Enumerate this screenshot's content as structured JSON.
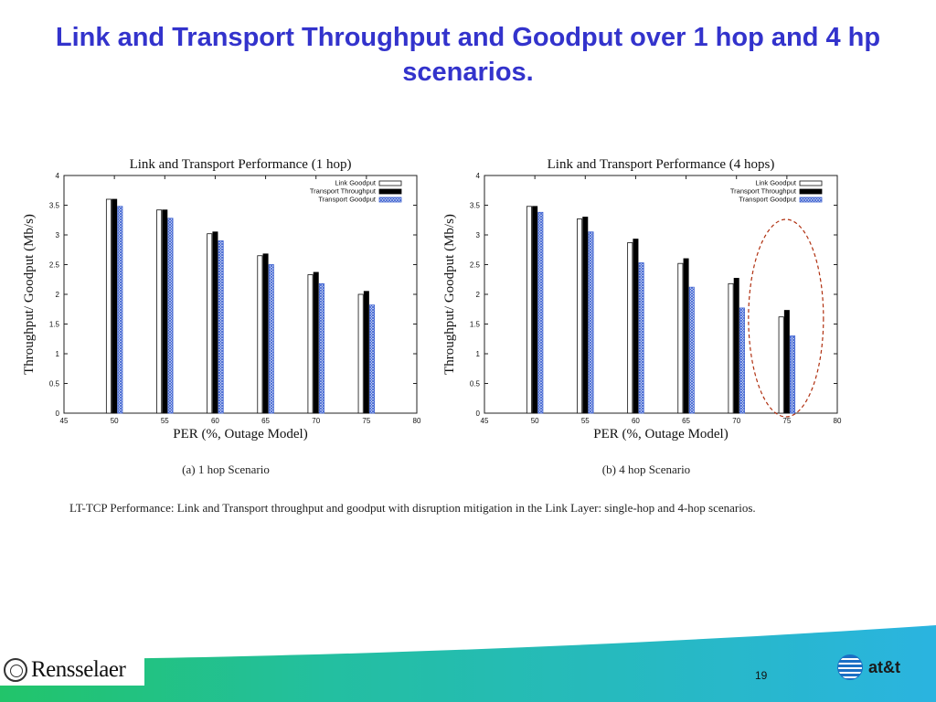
{
  "slide": {
    "title": "Link and Transport Throughput and Goodput over 1 hop and 4 hp scenarios.",
    "page_number": "19",
    "figure_caption": "LT-TCP Performance: Link and Transport throughput and goodput with disruption mitigation in the Link Layer: single-hop and 4-hop scenarios.",
    "logos": {
      "left": "Rensselaer",
      "right": "at&t"
    },
    "colors": {
      "title": "#3333cc",
      "goodput_pattern": "#3a5fd0",
      "highlight_ellipse": "#b03010",
      "footer_wave": "#2ab4d8",
      "footer_green": "#22c46a"
    }
  },
  "chart_data": [
    {
      "type": "bar",
      "title": "Link and Transport Performance (1 hop)",
      "subcaption": "(a) 1 hop Scenario",
      "xlabel": "PER (%, Outage Model)",
      "ylabel": "Throughput/ Goodput (Mb/s)",
      "xlim": [
        45,
        80
      ],
      "ylim": [
        0,
        4
      ],
      "x_ticks": [
        45,
        50,
        55,
        60,
        65,
        70,
        75,
        80
      ],
      "y_ticks": [
        0,
        0.5,
        1,
        1.5,
        2,
        2.5,
        3,
        3.5,
        4
      ],
      "legend_position": "top-right",
      "categories": [
        50,
        55,
        60,
        65,
        70,
        75
      ],
      "series": [
        {
          "name": "Link Goodput",
          "values": [
            3.6,
            3.42,
            3.02,
            2.65,
            2.33,
            2.0
          ]
        },
        {
          "name": "Transport Throughput",
          "values": [
            3.6,
            3.42,
            3.05,
            2.68,
            2.37,
            2.05
          ]
        },
        {
          "name": "Transport Goodput",
          "values": [
            3.48,
            3.28,
            2.9,
            2.5,
            2.18,
            1.82
          ]
        }
      ]
    },
    {
      "type": "bar",
      "title": "Link and Transport Performance (4 hops)",
      "subcaption": "(b) 4 hop Scenario",
      "xlabel": "PER (%, Outage Model)",
      "ylabel": "Throughput/ Goodput (Mb/s)",
      "xlim": [
        45,
        80
      ],
      "ylim": [
        0,
        4
      ],
      "x_ticks": [
        45,
        50,
        55,
        60,
        65,
        70,
        75,
        80
      ],
      "y_ticks": [
        0,
        0.5,
        1,
        1.5,
        2,
        2.5,
        3,
        3.5,
        4
      ],
      "legend_position": "top-right",
      "categories": [
        50,
        55,
        60,
        65,
        70,
        75
      ],
      "highlight_category": 75,
      "series": [
        {
          "name": "Link Goodput",
          "values": [
            3.48,
            3.27,
            2.87,
            2.52,
            2.18,
            1.62
          ]
        },
        {
          "name": "Transport Throughput",
          "values": [
            3.48,
            3.3,
            2.93,
            2.6,
            2.27,
            1.73
          ]
        },
        {
          "name": "Transport Goodput",
          "values": [
            3.38,
            3.05,
            2.53,
            2.12,
            1.77,
            1.3
          ]
        }
      ]
    }
  ]
}
